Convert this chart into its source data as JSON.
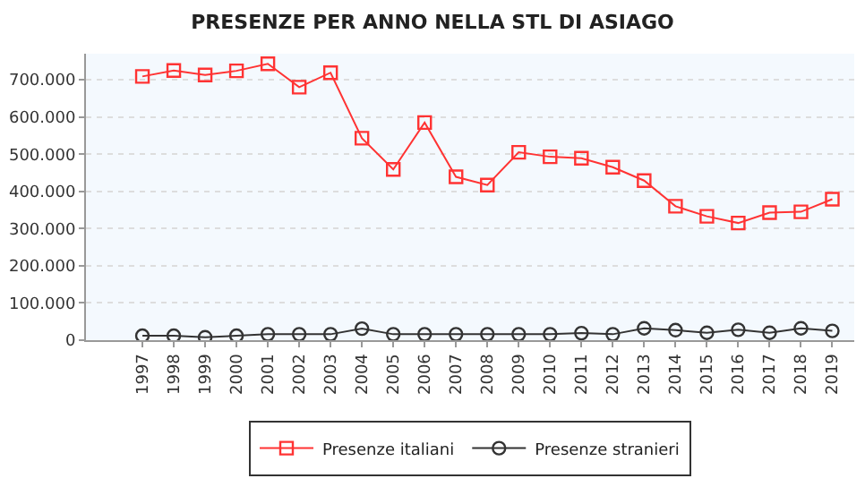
{
  "chart_data": {
    "type": "line",
    "title": "PRESENZE PER ANNO NELLA STL DI ASIAGO",
    "categories": [
      "1997",
      "1998",
      "1999",
      "2000",
      "2001",
      "2002",
      "2003",
      "2004",
      "2005",
      "2006",
      "2007",
      "2008",
      "2009",
      "2010",
      "2011",
      "2012",
      "2013",
      "2014",
      "2015",
      "2016",
      "2017",
      "2018",
      "2019"
    ],
    "series": [
      {
        "name": "Presenze italiani",
        "color": "#ff3333",
        "marker": "square",
        "values": [
          709000,
          725000,
          713000,
          724000,
          743000,
          680000,
          719000,
          543000,
          459000,
          585000,
          439000,
          417000,
          505000,
          493000,
          489000,
          465000,
          429000,
          360000,
          333000,
          315000,
          343000,
          345000,
          379000
        ]
      },
      {
        "name": "Presenze stranieri",
        "color": "#333333",
        "marker": "circle",
        "values": [
          12000,
          12000,
          8000,
          12000,
          16000,
          16000,
          16000,
          31000,
          16000,
          16000,
          16000,
          16000,
          16000,
          16000,
          19000,
          16000,
          32000,
          27000,
          20000,
          28000,
          20000,
          32000,
          25000
        ]
      }
    ],
    "ylim": [
      0,
      770000
    ],
    "yticks": [
      {
        "value": 0,
        "label": "0"
      },
      {
        "value": 100000,
        "label": "100.000"
      },
      {
        "value": 200000,
        "label": "200.000"
      },
      {
        "value": 300000,
        "label": "300.000"
      },
      {
        "value": 400000,
        "label": "400.000"
      },
      {
        "value": 500000,
        "label": "500.000"
      },
      {
        "value": 600000,
        "label": "600.000"
      },
      {
        "value": 700000,
        "label": "700.000"
      }
    ],
    "grid": "y",
    "legend": "bottom",
    "line_style": "solid"
  }
}
